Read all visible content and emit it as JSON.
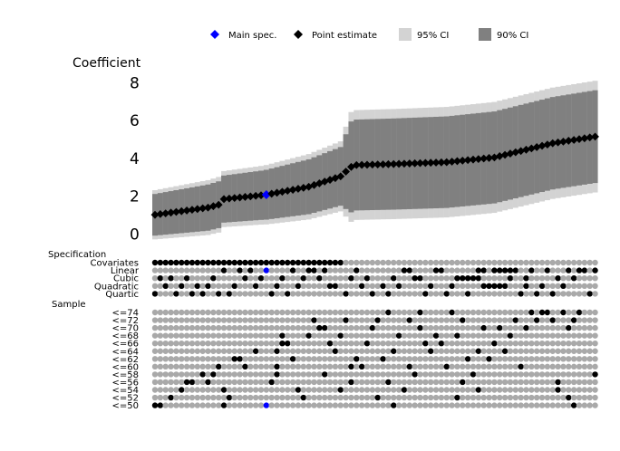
{
  "chart_data": {
    "type": "scatter",
    "subtype": "specification-curve",
    "n_specs": 84,
    "ylabel": "Coefficient",
    "ylim": [
      -0.3,
      8.6
    ],
    "yticks": [
      "0",
      "2",
      "4",
      "6",
      "8"
    ],
    "ytick_values": [
      0,
      2,
      4,
      6,
      8
    ],
    "legend": [
      {
        "label": "Main spec.",
        "marker": "diamond",
        "color": "#0000ff"
      },
      {
        "label": "Point estimate",
        "marker": "diamond",
        "color": "#000000"
      },
      {
        "label": "95% CI",
        "marker": "square",
        "color": "#d3d3d3"
      },
      {
        "label": "90% CI",
        "marker": "square",
        "color": "#808080"
      }
    ],
    "legend_position": "top",
    "main_spec_index": 21,
    "colors": {
      "point": "#000000",
      "main": "#0000ff",
      "ci95": "#d3d3d3",
      "ci90": "#808080",
      "inactive": "#a9a9a9"
    },
    "estimate_curve": [
      [
        0,
        1.02
      ],
      [
        10,
        1.4
      ],
      [
        12,
        1.55
      ],
      [
        13,
        1.85
      ],
      [
        20,
        2.05
      ],
      [
        21,
        2.08
      ],
      [
        29,
        2.5
      ],
      [
        35,
        3.05
      ],
      [
        37,
        3.55
      ],
      [
        38,
        3.65
      ],
      [
        45,
        3.7
      ],
      [
        55,
        3.8
      ],
      [
        64,
        4.05
      ],
      [
        75,
        4.8
      ],
      [
        83,
        5.15
      ]
    ],
    "ci95_halfwidth_curve": [
      [
        0,
        1.3
      ],
      [
        10,
        1.45
      ],
      [
        20,
        1.55
      ],
      [
        35,
        1.85
      ],
      [
        37,
        2.9
      ],
      [
        83,
        2.95
      ]
    ],
    "ci90_halfwidth_curve": [
      [
        0,
        1.1
      ],
      [
        10,
        1.22
      ],
      [
        20,
        1.3
      ],
      [
        35,
        1.55
      ],
      [
        37,
        2.4
      ],
      [
        83,
        2.45
      ]
    ],
    "specification_title": "Specification",
    "specification_rows": [
      {
        "label": "Covariates",
        "active_ranges": [
          [
            0,
            35
          ]
        ],
        "active": []
      },
      {
        "label": "Linear",
        "active_ranges": [
          [
            64,
            68
          ]
        ],
        "active": [
          13,
          16,
          18,
          21,
          26,
          29,
          30,
          32,
          38,
          47,
          48,
          53,
          54,
          61,
          62,
          71,
          74,
          78,
          80,
          81,
          83
        ]
      },
      {
        "label": "Cubic",
        "active_ranges": [
          [
            58,
            61
          ]
        ],
        "active": [
          1,
          3,
          6,
          11,
          17,
          20,
          24,
          28,
          31,
          37,
          40,
          45,
          49,
          50,
          57,
          67,
          70,
          76,
          79
        ]
      },
      {
        "label": "Quadratic",
        "active_ranges": [
          [
            62,
            66
          ]
        ],
        "active": [
          2,
          5,
          8,
          10,
          15,
          19,
          23,
          27,
          33,
          34,
          39,
          43,
          46,
          52,
          56,
          70,
          73,
          77
        ]
      },
      {
        "label": "Quartic",
        "active_ranges": [],
        "active": [
          0,
          4,
          7,
          9,
          12,
          14,
          22,
          25,
          36,
          41,
          44,
          51,
          55,
          59,
          69,
          72,
          75,
          82
        ]
      }
    ],
    "sample_title": "Sample",
    "sample_rows": [
      {
        "label": "<=74",
        "active": [
          44,
          50,
          56,
          71,
          73,
          74,
          77,
          80
        ]
      },
      {
        "label": "<=72",
        "active": [
          30,
          36,
          42,
          48,
          58,
          68,
          72,
          75,
          79
        ]
      },
      {
        "label": "<=70",
        "active": [
          31,
          32,
          41,
          50,
          62,
          65,
          70,
          78
        ]
      },
      {
        "label": "<=68",
        "active": [
          24,
          29,
          35,
          46,
          53,
          57,
          67
        ]
      },
      {
        "label": "<=66",
        "active": [
          24,
          25,
          33,
          40,
          51,
          54,
          64
        ]
      },
      {
        "label": "<=64",
        "active": [
          19,
          23,
          34,
          45,
          52,
          61,
          66
        ]
      },
      {
        "label": "<=62",
        "active": [
          15,
          16,
          26,
          38,
          43,
          59,
          63
        ]
      },
      {
        "label": "<=60",
        "active": [
          12,
          17,
          23,
          37,
          39,
          48,
          55,
          69
        ]
      },
      {
        "label": "<=58",
        "active": [
          9,
          11,
          23,
          32,
          49,
          60,
          83
        ]
      },
      {
        "label": "<=56",
        "active": [
          6,
          7,
          10,
          22,
          37,
          44,
          58,
          76
        ]
      },
      {
        "label": "<=54",
        "active": [
          5,
          13,
          27,
          35,
          47,
          61,
          76
        ]
      },
      {
        "label": "<=52",
        "active": [
          3,
          14,
          28,
          42,
          57,
          78
        ]
      },
      {
        "label": "<=50",
        "active": [
          0,
          1,
          13,
          21,
          45,
          79
        ]
      }
    ]
  }
}
